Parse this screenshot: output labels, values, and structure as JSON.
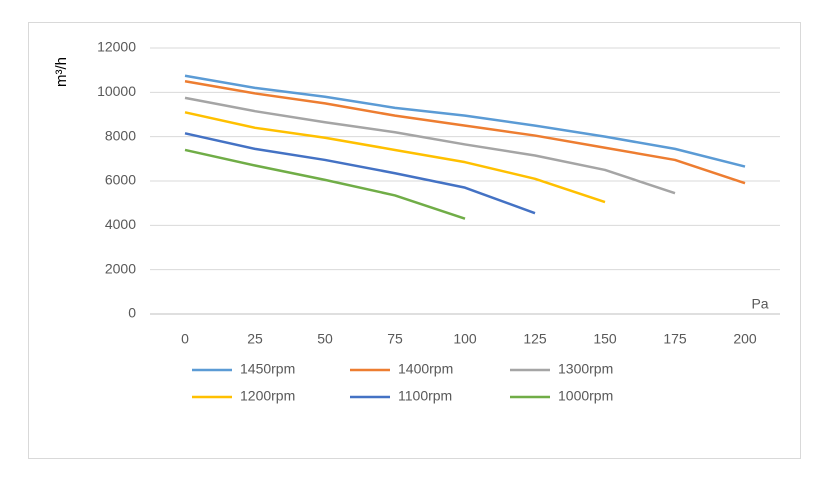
{
  "chart_data": {
    "type": "line",
    "y_label": "m³/h",
    "x_label": "Pa",
    "categories": [
      "0",
      "25",
      "50",
      "75",
      "100",
      "125",
      "150",
      "175",
      "200"
    ],
    "series": [
      {
        "name": "1450rpm",
        "color": "#5b9bd5",
        "values": [
          10750,
          10200,
          9800,
          9300,
          8950,
          8500,
          8000,
          7450,
          6650
        ]
      },
      {
        "name": "1400rpm",
        "color": "#ed7d31",
        "values": [
          10500,
          9950,
          9500,
          8950,
          8500,
          8050,
          7500,
          6950,
          5900
        ]
      },
      {
        "name": "1300rpm",
        "color": "#a5a5a5",
        "values": [
          9750,
          9150,
          8650,
          8200,
          7650,
          7150,
          6500,
          5450,
          null
        ]
      },
      {
        "name": "1200rpm",
        "color": "#ffc000",
        "values": [
          9100,
          8400,
          7950,
          7400,
          6850,
          6100,
          5050,
          null,
          null
        ]
      },
      {
        "name": "1100rpm",
        "color": "#4472c4",
        "values": [
          8150,
          7450,
          6950,
          6350,
          5700,
          4550,
          null,
          null,
          null
        ]
      },
      {
        "name": "1000rpm",
        "color": "#70ad47",
        "values": [
          7400,
          6700,
          6050,
          5350,
          4300,
          null,
          null,
          null,
          null
        ]
      }
    ],
    "ylim": [
      0,
      12000
    ],
    "yticks": [
      0,
      2000,
      4000,
      6000,
      8000,
      10000,
      12000
    ],
    "grid": true
  }
}
